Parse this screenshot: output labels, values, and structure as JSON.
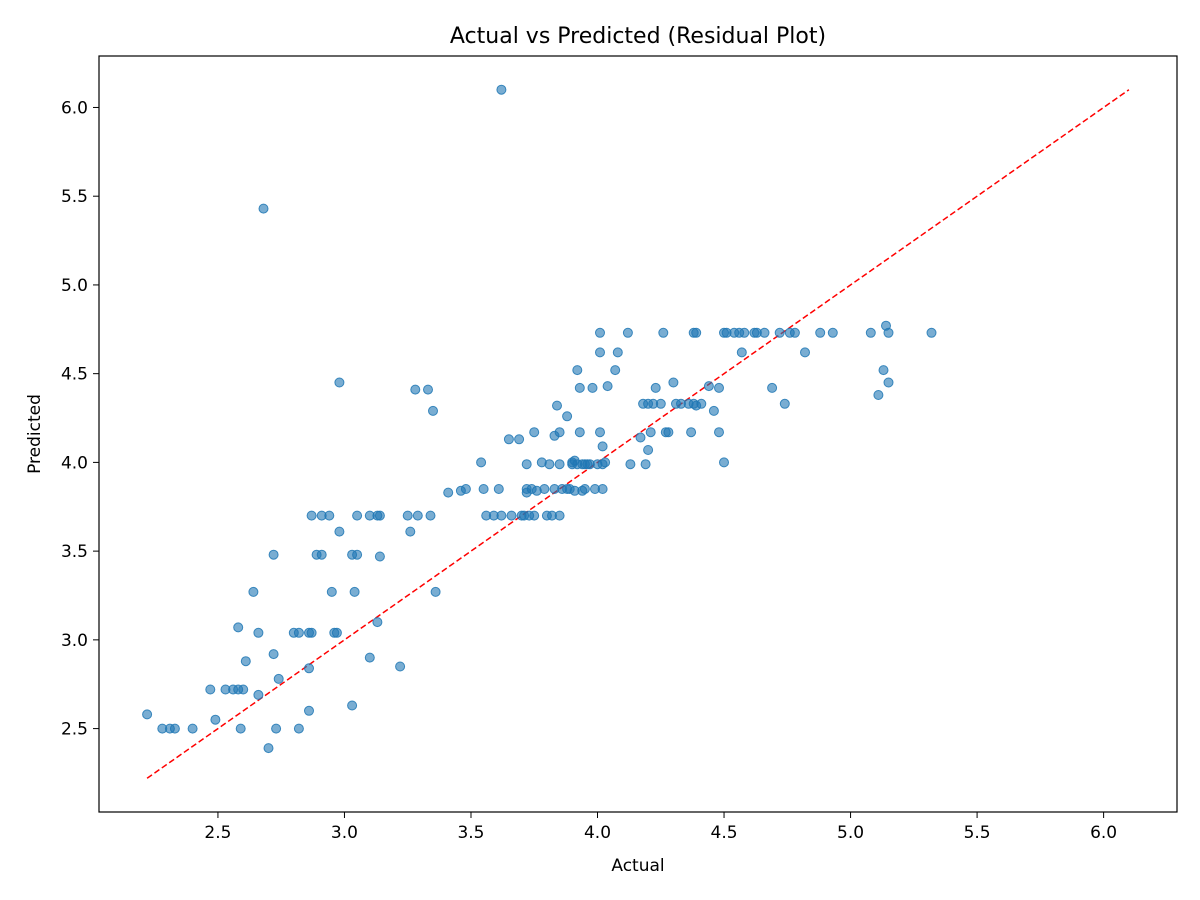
{
  "chart_data": {
    "type": "scatter",
    "title": "Actual vs Predicted (Residual Plot)",
    "xlabel": "Actual",
    "ylabel": "Predicted",
    "xlim": [
      2.03,
      6.29
    ],
    "ylim": [
      2.03,
      6.29
    ],
    "xticks": [
      2.5,
      3.0,
      3.5,
      4.0,
      4.5,
      5.0,
      5.5,
      6.0
    ],
    "yticks": [
      2.5,
      3.0,
      3.5,
      4.0,
      4.5,
      5.0,
      5.5,
      6.0
    ],
    "xtick_labels": [
      "2.5",
      "3.0",
      "3.5",
      "4.0",
      "4.5",
      "5.0",
      "5.5",
      "6.0"
    ],
    "ytick_labels": [
      "2.5",
      "3.0",
      "3.5",
      "4.0",
      "4.5",
      "5.0",
      "5.5",
      "6.0"
    ],
    "grid": false,
    "point_color": "#1f77b4",
    "point_alpha": 0.6,
    "reference_line": {
      "style": "dashed",
      "color": "#ff0000",
      "from": [
        2.22,
        2.22
      ],
      "to": [
        6.1,
        6.1
      ]
    },
    "points": [
      [
        2.22,
        2.58
      ],
      [
        2.28,
        2.5
      ],
      [
        2.31,
        2.5
      ],
      [
        2.33,
        2.5
      ],
      [
        2.4,
        2.5
      ],
      [
        2.47,
        2.72
      ],
      [
        2.49,
        2.55
      ],
      [
        2.53,
        2.72
      ],
      [
        2.56,
        2.72
      ],
      [
        2.58,
        2.72
      ],
      [
        2.6,
        2.72
      ],
      [
        2.58,
        3.07
      ],
      [
        2.59,
        2.5
      ],
      [
        2.61,
        2.88
      ],
      [
        2.64,
        3.27
      ],
      [
        2.66,
        3.04
      ],
      [
        2.66,
        2.69
      ],
      [
        2.68,
        5.43
      ],
      [
        2.7,
        2.39
      ],
      [
        2.72,
        2.92
      ],
      [
        2.72,
        3.48
      ],
      [
        2.73,
        2.5
      ],
      [
        2.74,
        2.78
      ],
      [
        2.8,
        3.04
      ],
      [
        2.82,
        3.04
      ],
      [
        2.82,
        2.5
      ],
      [
        2.86,
        2.84
      ],
      [
        2.86,
        3.04
      ],
      [
        2.87,
        3.04
      ],
      [
        2.86,
        2.6
      ],
      [
        2.87,
        3.7
      ],
      [
        2.89,
        3.48
      ],
      [
        2.91,
        3.48
      ],
      [
        2.91,
        3.7
      ],
      [
        2.94,
        3.7
      ],
      [
        2.95,
        3.27
      ],
      [
        2.96,
        3.04
      ],
      [
        2.97,
        3.04
      ],
      [
        2.98,
        3.61
      ],
      [
        2.98,
        4.45
      ],
      [
        3.03,
        2.63
      ],
      [
        3.03,
        3.48
      ],
      [
        3.05,
        3.48
      ],
      [
        3.04,
        3.27
      ],
      [
        3.05,
        3.7
      ],
      [
        3.1,
        3.7
      ],
      [
        3.1,
        2.9
      ],
      [
        3.13,
        3.7
      ],
      [
        3.14,
        3.7
      ],
      [
        3.13,
        3.1
      ],
      [
        3.14,
        3.47
      ],
      [
        3.22,
        2.85
      ],
      [
        3.25,
        3.7
      ],
      [
        3.26,
        3.61
      ],
      [
        3.28,
        4.41
      ],
      [
        3.29,
        3.7
      ],
      [
        3.33,
        4.41
      ],
      [
        3.34,
        3.7
      ],
      [
        3.35,
        4.29
      ],
      [
        3.36,
        3.27
      ],
      [
        3.41,
        3.83
      ],
      [
        3.46,
        3.84
      ],
      [
        3.48,
        3.85
      ],
      [
        3.54,
        4.0
      ],
      [
        3.55,
        3.85
      ],
      [
        3.56,
        3.7
      ],
      [
        3.59,
        3.7
      ],
      [
        3.61,
        3.85
      ],
      [
        3.62,
        6.1
      ],
      [
        3.62,
        3.7
      ],
      [
        3.65,
        4.13
      ],
      [
        3.66,
        3.7
      ],
      [
        3.69,
        4.13
      ],
      [
        3.7,
        3.7
      ],
      [
        3.71,
        3.7
      ],
      [
        3.72,
        3.85
      ],
      [
        3.72,
        3.99
      ],
      [
        3.73,
        3.7
      ],
      [
        3.72,
        3.83
      ],
      [
        3.74,
        3.85
      ],
      [
        3.75,
        4.17
      ],
      [
        3.75,
        3.7
      ],
      [
        3.76,
        3.84
      ],
      [
        3.78,
        4.0
      ],
      [
        3.79,
        3.85
      ],
      [
        3.8,
        3.7
      ],
      [
        3.81,
        3.99
      ],
      [
        3.82,
        3.7
      ],
      [
        3.83,
        3.85
      ],
      [
        3.83,
        4.15
      ],
      [
        3.84,
        4.32
      ],
      [
        3.85,
        3.7
      ],
      [
        3.85,
        3.99
      ],
      [
        3.85,
        4.17
      ],
      [
        3.86,
        3.85
      ],
      [
        3.88,
        4.26
      ],
      [
        3.88,
        3.85
      ],
      [
        3.89,
        3.85
      ],
      [
        3.9,
        4.0
      ],
      [
        3.9,
        3.99
      ],
      [
        3.91,
        3.84
      ],
      [
        3.91,
        4.01
      ],
      [
        3.92,
        4.52
      ],
      [
        3.92,
        3.99
      ],
      [
        3.93,
        4.42
      ],
      [
        3.93,
        4.17
      ],
      [
        3.94,
        3.84
      ],
      [
        3.94,
        3.99
      ],
      [
        3.95,
        3.85
      ],
      [
        3.95,
        3.99
      ],
      [
        3.96,
        3.99
      ],
      [
        3.97,
        3.99
      ],
      [
        3.98,
        4.42
      ],
      [
        3.99,
        3.85
      ],
      [
        4.0,
        3.99
      ],
      [
        4.01,
        4.73
      ],
      [
        4.01,
        4.62
      ],
      [
        4.01,
        4.17
      ],
      [
        4.02,
        4.09
      ],
      [
        4.02,
        3.99
      ],
      [
        4.02,
        3.85
      ],
      [
        4.03,
        4.0
      ],
      [
        4.04,
        4.43
      ],
      [
        4.07,
        4.52
      ],
      [
        4.08,
        4.62
      ],
      [
        4.12,
        4.73
      ],
      [
        4.13,
        3.99
      ],
      [
        4.17,
        4.14
      ],
      [
        4.18,
        4.33
      ],
      [
        4.19,
        3.99
      ],
      [
        4.2,
        4.07
      ],
      [
        4.2,
        4.33
      ],
      [
        4.21,
        4.17
      ],
      [
        4.22,
        4.33
      ],
      [
        4.23,
        4.42
      ],
      [
        4.25,
        4.33
      ],
      [
        4.26,
        4.73
      ],
      [
        4.27,
        4.17
      ],
      [
        4.28,
        4.17
      ],
      [
        4.3,
        4.45
      ],
      [
        4.31,
        4.33
      ],
      [
        4.33,
        4.33
      ],
      [
        4.36,
        4.33
      ],
      [
        4.37,
        4.17
      ],
      [
        4.38,
        4.73
      ],
      [
        4.39,
        4.73
      ],
      [
        4.38,
        4.33
      ],
      [
        4.39,
        4.32
      ],
      [
        4.41,
        4.33
      ],
      [
        4.44,
        4.43
      ],
      [
        4.46,
        4.29
      ],
      [
        4.48,
        4.42
      ],
      [
        4.48,
        4.17
      ],
      [
        4.5,
        4.73
      ],
      [
        4.51,
        4.73
      ],
      [
        4.5,
        4.0
      ],
      [
        4.54,
        4.73
      ],
      [
        4.56,
        4.73
      ],
      [
        4.57,
        4.62
      ],
      [
        4.58,
        4.73
      ],
      [
        4.62,
        4.73
      ],
      [
        4.63,
        4.73
      ],
      [
        4.66,
        4.73
      ],
      [
        4.69,
        4.42
      ],
      [
        4.72,
        4.73
      ],
      [
        4.74,
        4.33
      ],
      [
        4.76,
        4.73
      ],
      [
        4.78,
        4.73
      ],
      [
        4.82,
        4.62
      ],
      [
        4.88,
        4.73
      ],
      [
        4.93,
        4.73
      ],
      [
        5.08,
        4.73
      ],
      [
        5.11,
        4.38
      ],
      [
        5.13,
        4.52
      ],
      [
        5.14,
        4.77
      ],
      [
        5.15,
        4.73
      ],
      [
        5.15,
        4.45
      ],
      [
        5.32,
        4.73
      ]
    ]
  }
}
